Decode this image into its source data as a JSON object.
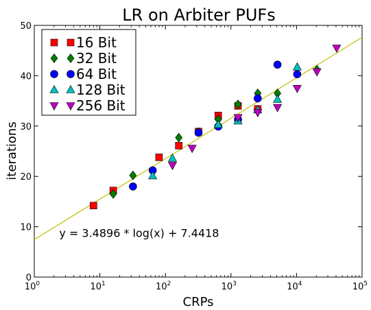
{
  "chart_data": {
    "type": "scatter",
    "title": "LR on Arbiter PUFs",
    "xlabel": "CRPs",
    "ylabel": "iterations",
    "xscale": "log",
    "xlim": [
      1,
      100000
    ],
    "ylim": [
      0,
      50
    ],
    "x_ticks": [
      {
        "value": 1,
        "base": "10",
        "exp": "0"
      },
      {
        "value": 10,
        "base": "10",
        "exp": "1"
      },
      {
        "value": 100,
        "base": "10",
        "exp": "2"
      },
      {
        "value": 1000,
        "base": "10",
        "exp": "3"
      },
      {
        "value": 10000,
        "base": "10",
        "exp": "4"
      },
      {
        "value": 100000,
        "base": "10",
        "exp": "5"
      }
    ],
    "y_ticks": [
      {
        "value": 0,
        "label": "0"
      },
      {
        "value": 10,
        "label": "10"
      },
      {
        "value": 20,
        "label": "20"
      },
      {
        "value": 30,
        "label": "30"
      },
      {
        "value": 40,
        "label": "40"
      },
      {
        "value": 50,
        "label": "50"
      }
    ],
    "grid": false,
    "legend_position": "top-left",
    "series": [
      {
        "name": "16 Bit",
        "marker": "square",
        "color": "#ff0000",
        "x": [
          8,
          16,
          80,
          160,
          320,
          640,
          1280,
          2560
        ],
        "y": [
          14.2,
          17.2,
          23.8,
          26.1,
          28.9,
          32.1,
          34.0,
          33.4
        ]
      },
      {
        "name": "32 Bit",
        "marker": "diamond",
        "color": "#007f00",
        "x": [
          16,
          32,
          160,
          320,
          640,
          1280,
          2560,
          5120,
          20480
        ],
        "y": [
          16.5,
          20.2,
          27.7,
          28.8,
          31.3,
          34.3,
          36.5,
          36.5,
          41.2
        ]
      },
      {
        "name": "64 Bit",
        "marker": "circle",
        "color": "#0000ff",
        "x": [
          32,
          64,
          320,
          640,
          1280,
          2560,
          5120,
          10240
        ],
        "y": [
          18.0,
          21.2,
          28.7,
          29.9,
          31.3,
          35.5,
          42.2,
          40.3
        ]
      },
      {
        "name": "128 Bit",
        "marker": "triangle-up",
        "color": "#00bfbf",
        "x": [
          64,
          128,
          640,
          1280,
          2560,
          5120,
          10240
        ],
        "y": [
          20.1,
          23.6,
          30.3,
          31.0,
          33.2,
          35.3,
          41.7
        ]
      },
      {
        "name": "256 Bit",
        "marker": "triangle-down",
        "color": "#bf00bf",
        "x": [
          128,
          256,
          1280,
          2560,
          5120,
          10240,
          20480,
          40960
        ],
        "y": [
          22.2,
          25.6,
          31.7,
          32.7,
          33.7,
          37.5,
          40.8,
          45.5
        ]
      }
    ],
    "fit": {
      "color": "#bfbf00",
      "slope": 3.4896,
      "intercept": 7.4418,
      "equation": "y = 3.4896 * log(x) + 7.4418",
      "annotation_at": {
        "x": 2.4,
        "y": 8.0
      }
    }
  }
}
